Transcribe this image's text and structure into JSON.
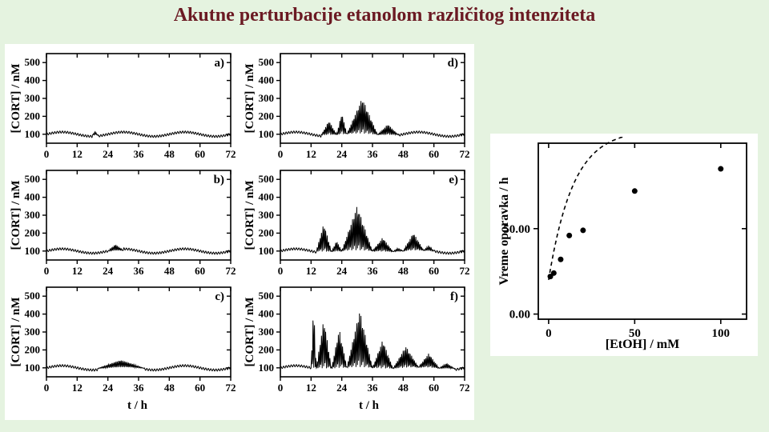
{
  "title": "Akutne perturbacije etanolom različitog intenziteta",
  "colors": {
    "page_bg": "#e5f3e0",
    "panel_bg": "#ffffff",
    "title_color": "#6b1a23",
    "axis_color": "#000000",
    "line_color": "#000000"
  },
  "typography": {
    "title_fontsize": 24,
    "axis_label_fontsize": 15,
    "tick_fontsize": 13,
    "panel_letter_fontsize": 15
  },
  "left_grid": {
    "xlabel": "t / h",
    "ylabel": "[CORT] / nM",
    "xlim": [
      0,
      72
    ],
    "xticks": [
      0,
      12,
      24,
      36,
      48,
      60,
      72
    ],
    "ylim": [
      50,
      550
    ],
    "yticks": [
      100,
      200,
      300,
      400,
      500
    ],
    "mild_oscillation": {
      "baseline": 100,
      "amp1": 12,
      "period1": 24,
      "amp2": 6,
      "period2": 1.0
    },
    "panels": [
      {
        "letter": "a)",
        "burst": {
          "start": 18,
          "end": 20,
          "peak": 120
        }
      },
      {
        "letter": "b)",
        "burst": {
          "start": 24,
          "end": 30,
          "peak": 135
        }
      },
      {
        "letter": "c)",
        "burst": {
          "start": 20,
          "end": 38,
          "peak": 140
        }
      },
      {
        "letter": "d)",
        "burst": {
          "start": 16,
          "end": 46,
          "peak": 300,
          "segments": [
            {
              "s": 16,
              "e": 22,
              "p": 180
            },
            {
              "s": 22,
              "e": 26,
              "p": 220
            },
            {
              "s": 26,
              "e": 38,
              "p": 300
            },
            {
              "s": 38,
              "e": 46,
              "p": 160
            }
          ]
        }
      },
      {
        "letter": "e)",
        "burst": {
          "start": 14,
          "end": 60,
          "peak": 350,
          "segments": [
            {
              "s": 14,
              "e": 20,
              "p": 260
            },
            {
              "s": 20,
              "e": 24,
              "p": 160
            },
            {
              "s": 24,
              "e": 36,
              "p": 350
            },
            {
              "s": 36,
              "e": 44,
              "p": 180
            },
            {
              "s": 44,
              "e": 48,
              "p": 120
            },
            {
              "s": 48,
              "e": 56,
              "p": 200
            },
            {
              "s": 56,
              "e": 60,
              "p": 130
            }
          ]
        }
      },
      {
        "letter": "f)",
        "burst": {
          "start": 12,
          "end": 68,
          "peak": 470,
          "segments": [
            {
              "s": 12,
              "e": 14,
              "p": 470
            },
            {
              "s": 14,
              "e": 20,
              "p": 380
            },
            {
              "s": 20,
              "e": 26,
              "p": 320
            },
            {
              "s": 26,
              "e": 36,
              "p": 420
            },
            {
              "s": 36,
              "e": 44,
              "p": 260
            },
            {
              "s": 44,
              "e": 54,
              "p": 220
            },
            {
              "s": 54,
              "e": 62,
              "p": 180
            },
            {
              "s": 62,
              "e": 68,
              "p": 130
            }
          ]
        }
      }
    ]
  },
  "right_plot": {
    "xlabel": "[EtOH] / mM",
    "ylabel": "Vreme oporavka / h",
    "xlim": [
      -6,
      115
    ],
    "ylim": [
      -3,
      100
    ],
    "xticks": [
      0,
      50,
      100
    ],
    "yticks": [
      0.0,
      50.0
    ],
    "ytick_labels": [
      "0.00",
      "50.00"
    ],
    "points": [
      {
        "x": 1,
        "y": 22
      },
      {
        "x": 3,
        "y": 24
      },
      {
        "x": 7,
        "y": 32
      },
      {
        "x": 12,
        "y": 46
      },
      {
        "x": 20,
        "y": 49
      },
      {
        "x": 50,
        "y": 72
      },
      {
        "x": 100,
        "y": 85
      }
    ],
    "marker_radius": 3.5,
    "curve": {
      "a": 88,
      "k": 0.07,
      "y0": 20,
      "dash": "5,4"
    }
  }
}
